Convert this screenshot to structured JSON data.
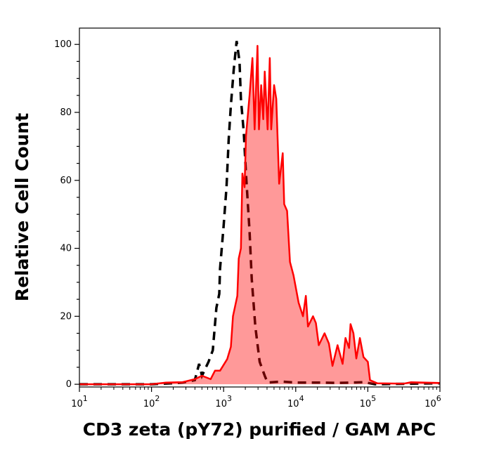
{
  "chart_data": {
    "type": "area",
    "title": "",
    "xlabel": "CD3 zeta (pY72) purified / GAM APC",
    "ylabel": "Relative Cell Count",
    "x_scale": "log",
    "xlim": [
      10,
      1000000
    ],
    "ylim": [
      -0.8,
      104.8
    ],
    "x_ticks": [
      {
        "base": "10",
        "exp": "1",
        "value": 10
      },
      {
        "base": "10",
        "exp": "2",
        "value": 100
      },
      {
        "base": "10",
        "exp": "3",
        "value": 1000
      },
      {
        "base": "10",
        "exp": "4",
        "value": 10000
      },
      {
        "base": "10",
        "exp": "5",
        "value": 100000
      },
      {
        "base": "10",
        "exp": "6",
        "value": 1000000
      }
    ],
    "y_ticks": [
      "0",
      "20",
      "40",
      "60",
      "80",
      "100"
    ],
    "grid": false,
    "legend": "none",
    "series": [
      {
        "style": "dashed-line",
        "color": "#000000",
        "x_log10": [
          1.0,
          2.0,
          2.3,
          2.43,
          2.6,
          2.66,
          2.7,
          2.79,
          2.85,
          2.9,
          2.94,
          2.95,
          3.0,
          3.04,
          3.07,
          3.1,
          3.14,
          3.18,
          3.22,
          3.24,
          3.28,
          3.31,
          3.36,
          3.39,
          3.44,
          3.5,
          3.57,
          3.61,
          3.8,
          4.0,
          4.3,
          4.6,
          4.95,
          5.1,
          6.0
        ],
        "y": [
          0,
          0,
          0.3,
          0.5,
          1.2,
          6,
          2.5,
          6.6,
          10,
          22.5,
          26.6,
          34,
          46.6,
          58,
          72,
          82,
          92.6,
          101,
          95,
          84,
          74,
          62,
          45,
          31,
          17,
          6.6,
          2.5,
          0.5,
          0.8,
          0.5,
          0.5,
          0.4,
          0.6,
          0,
          0.3
        ]
      },
      {
        "style": "filled-line",
        "color": "#ff0000",
        "fill": "#ff9999",
        "x_log10": [
          1.0,
          2.0,
          2.2,
          2.43,
          2.6,
          2.7,
          2.82,
          2.88,
          2.95,
          3.05,
          3.1,
          3.13,
          3.19,
          3.21,
          3.24,
          3.26,
          3.29,
          3.31,
          3.36,
          3.4,
          3.43,
          3.47,
          3.49,
          3.52,
          3.55,
          3.57,
          3.61,
          3.64,
          3.66,
          3.7,
          3.73,
          3.77,
          3.82,
          3.84,
          3.88,
          3.92,
          3.97,
          4.04,
          4.1,
          4.14,
          4.17,
          4.24,
          4.28,
          4.32,
          4.4,
          4.46,
          4.51,
          4.58,
          4.65,
          4.69,
          4.74,
          4.76,
          4.8,
          4.84,
          4.89,
          4.94,
          5.0,
          5.03,
          5.13,
          5.5,
          5.6,
          6.0
        ],
        "y": [
          0,
          0,
          0.5,
          0.6,
          1.5,
          2.5,
          1.5,
          4,
          4,
          7.4,
          11,
          20,
          26,
          37,
          40,
          62,
          58,
          73,
          85,
          96,
          75,
          99.6,
          75,
          88,
          78,
          92,
          75,
          96,
          75,
          88,
          84,
          59,
          68,
          53,
          51,
          36,
          32,
          24,
          20,
          26,
          17,
          20,
          18,
          11.5,
          15,
          12,
          5.4,
          11.5,
          6,
          13.6,
          10.7,
          17.7,
          15,
          7.6,
          13.6,
          8,
          6.6,
          1.2,
          0.3,
          0.2,
          0.6,
          0.4
        ]
      }
    ]
  }
}
